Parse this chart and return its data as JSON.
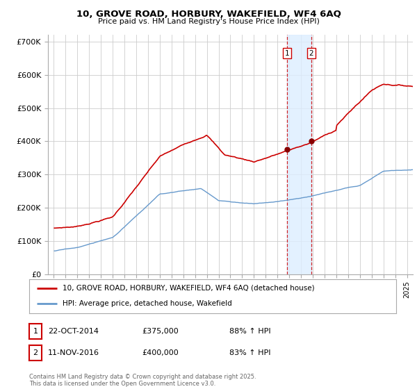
{
  "title_line1": "10, GROVE ROAD, HORBURY, WAKEFIELD, WF4 6AQ",
  "title_line2": "Price paid vs. HM Land Registry's House Price Index (HPI)",
  "legend_label_red": "10, GROVE ROAD, HORBURY, WAKEFIELD, WF4 6AQ (detached house)",
  "legend_label_blue": "HPI: Average price, detached house, Wakefield",
  "footer": "Contains HM Land Registry data © Crown copyright and database right 2025.\nThis data is licensed under the Open Government Licence v3.0.",
  "sale1_label": "1",
  "sale1_date": "22-OCT-2014",
  "sale1_price": "£375,000",
  "sale1_hpi": "88% ↑ HPI",
  "sale2_label": "2",
  "sale2_date": "11-NOV-2016",
  "sale2_price": "£400,000",
  "sale2_hpi": "83% ↑ HPI",
  "sale1_x": 2014.81,
  "sale2_x": 2016.87,
  "red_color": "#cc0000",
  "blue_color": "#6699cc",
  "shade_color": "#ddeeff",
  "vline_color": "#cc0000",
  "background_color": "#ffffff",
  "grid_color": "#cccccc",
  "yticks": [
    0,
    100000,
    200000,
    300000,
    400000,
    500000,
    600000,
    700000
  ],
  "ylabels": [
    "£0",
    "£100K",
    "£200K",
    "£300K",
    "£400K",
    "£500K",
    "£600K",
    "£700K"
  ],
  "ylim_max": 720000,
  "ylim_min": 0,
  "xlim_min": 1994.5,
  "xlim_max": 2025.5
}
